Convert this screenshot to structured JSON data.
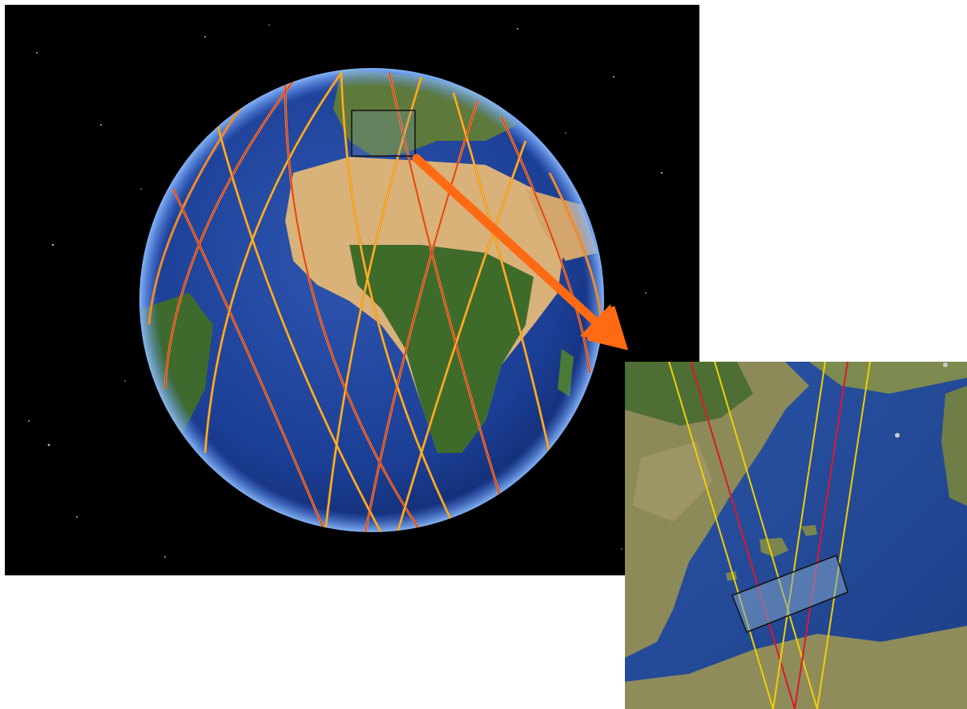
{
  "figure": {
    "description_visible_text": ""
  },
  "globe": {
    "colors": {
      "space": "#000000",
      "ocean": "#1c3f96",
      "land_desert": "#d9b27a",
      "land_green": "#3f6b2a",
      "track_orange": "#f08a2a",
      "track_red": "#d41d2b",
      "track_yellow": "#f2d21a",
      "zoom_arrow": "#ff6a13",
      "highlight_box": "#111111"
    },
    "icons": [
      "earth-globe",
      "satellite-ground-tracks",
      "zoom-arrow"
    ]
  },
  "inset": {
    "colors": {
      "sea": "#23489c",
      "land": "#8a8c58",
      "swath_box_fill": "#7fa2c6",
      "track_red": "#e0162c",
      "track_yellow": "#f0d000"
    }
  }
}
